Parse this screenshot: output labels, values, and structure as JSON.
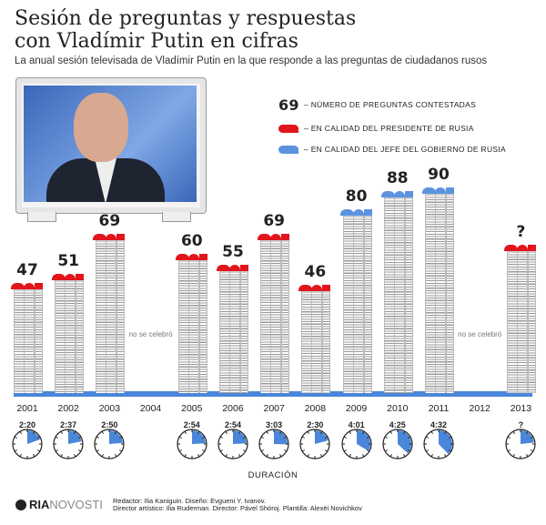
{
  "title_line1": "Sesión de preguntas y respuestas",
  "title_line2": "con Vladímir Putin en cifras",
  "subtitle": "La anual sesión televisada de Vladímir Putin en la que responde a las preguntas de ciudadanos rusos",
  "legend": {
    "sample_value": "69",
    "count_label": "– NÚMERO DE PREGUNTAS CONTESTADAS",
    "president_label": "– EN CALIDAD DEL PRESIDENTE DE RUSIA",
    "premier_label": "– EN CALIDAD DEL JEFE DEL GOBIERNO DE RUSIA"
  },
  "colors": {
    "president": "#e3151c",
    "premier": "#5b93e0",
    "baseline": "#4a86d9",
    "clock_fill": "#4a86d9"
  },
  "chart_data": {
    "type": "bar",
    "title": "Número de preguntas contestadas",
    "categories": [
      "2001",
      "2002",
      "2003",
      "2004",
      "2005",
      "2006",
      "2007",
      "2008",
      "2009",
      "2010",
      "2011",
      "2012",
      "2013"
    ],
    "values": [
      47,
      51,
      69,
      null,
      60,
      55,
      69,
      46,
      80,
      88,
      90,
      null,
      null
    ],
    "value_labels": [
      "47",
      "51",
      "69",
      "",
      "60",
      "55",
      "69",
      "46",
      "80",
      "88",
      "90",
      "",
      "?"
    ],
    "role": [
      "president",
      "president",
      "president",
      "",
      "president",
      "president",
      "president",
      "president",
      "premier",
      "premier",
      "premier",
      "",
      "president"
    ],
    "not_held_label": "no se celebró",
    "durations": [
      "2:20",
      "2:37",
      "2:50",
      "",
      "2:54",
      "2:54",
      "3:03",
      "2:30",
      "4:01",
      "4:25",
      "4:32",
      "",
      "?"
    ],
    "duration_label": "DURACIÓN"
  },
  "footer": {
    "logo_bold": "RIA",
    "logo_light": "NOVOSTI",
    "credits_line1": "Redactor: Ilia Kaniguin. Diseño: Evgueni Y. Ivanov.",
    "credits_line2": "Director artístico: Ilia Ruderman. Director: Pável Shóroj. Plantilla: Alexéi Novichkov"
  }
}
